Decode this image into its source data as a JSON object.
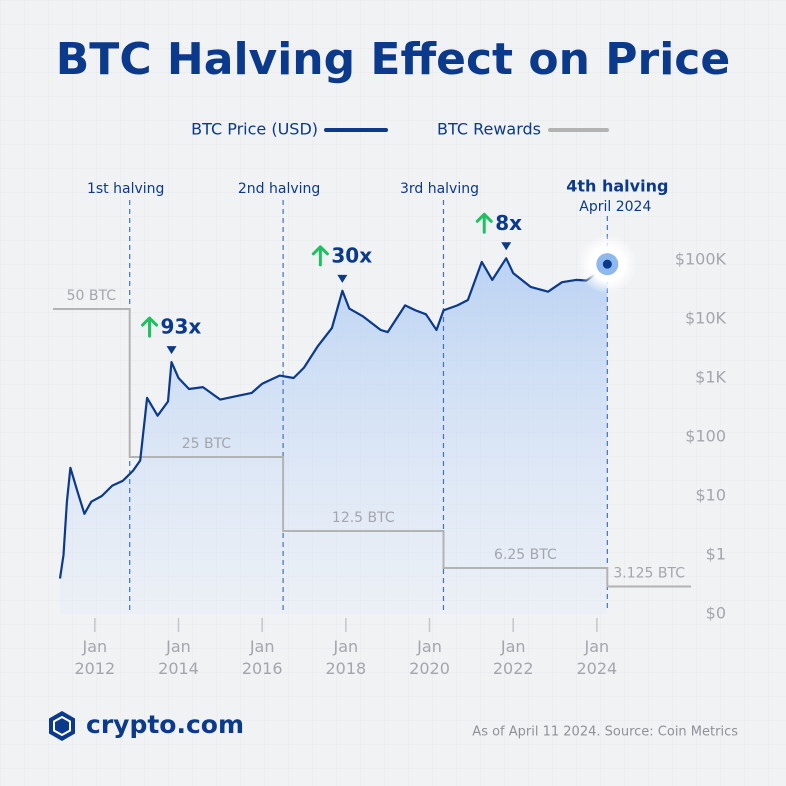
{
  "chart_data": {
    "type": "line",
    "title": "BTC Halving Effect on Price",
    "xlim": [
      "2011-01",
      "2026-04"
    ],
    "xticks": [
      {
        "value": "2012-01",
        "label": "Jan 2012"
      },
      {
        "value": "2014-01",
        "label": "Jan 2014"
      },
      {
        "value": "2016-01",
        "label": "Jan 2016"
      },
      {
        "value": "2018-01",
        "label": "Jan 2018"
      },
      {
        "value": "2020-01",
        "label": "Jan 2020"
      },
      {
        "value": "2022-01",
        "label": "Jan 2022"
      },
      {
        "value": "2024-01",
        "label": "Jan 2024"
      }
    ],
    "ylim": [
      0.1,
      1000000
    ],
    "log_scale": true,
    "yticks": [
      {
        "value": 0.1,
        "label": "$0"
      },
      {
        "value": 1,
        "label": "$1"
      },
      {
        "value": 10,
        "label": "$10"
      },
      {
        "value": 100,
        "label": "$100"
      },
      {
        "value": 1000,
        "label": "$1K"
      },
      {
        "value": 10000,
        "label": "$10K"
      },
      {
        "value": 100000,
        "label": "$100K"
      }
    ],
    "y2lim": [
      0,
      50
    ],
    "series": [
      {
        "name": "BTC Price (USD)",
        "color": "#0b3a8c",
        "x": [
          "2011-03",
          "2011-04",
          "2011-05",
          "2011-06",
          "2011-08",
          "2011-10",
          "2011-12",
          "2012-03",
          "2012-06",
          "2012-09",
          "2012-12",
          "2013-02",
          "2013-04",
          "2013-07",
          "2013-10",
          "2013-11",
          "2014-01",
          "2014-04",
          "2014-08",
          "2015-01",
          "2015-06",
          "2015-10",
          "2016-01",
          "2016-06",
          "2016-10",
          "2017-01",
          "2017-05",
          "2017-09",
          "2017-12",
          "2018-02",
          "2018-06",
          "2018-11",
          "2019-01",
          "2019-06",
          "2019-09",
          "2019-12",
          "2020-03",
          "2020-05",
          "2020-09",
          "2020-12",
          "2021-04",
          "2021-07",
          "2021-11",
          "2022-01",
          "2022-06",
          "2022-11",
          "2023-03",
          "2023-07",
          "2023-10",
          "2024-01",
          "2024-03",
          "2024-04"
        ],
        "values": [
          0.4,
          1,
          8,
          30,
          12,
          5,
          8,
          10,
          15,
          18,
          27,
          40,
          460,
          230,
          400,
          1860,
          1000,
          650,
          700,
          430,
          500,
          560,
          800,
          1100,
          1000,
          1500,
          3500,
          7000,
          30000,
          15000,
          11000,
          6500,
          6000,
          17000,
          14000,
          12000,
          6500,
          14000,
          17000,
          21000,
          93000,
          46000,
          107000,
          60000,
          35000,
          29000,
          42000,
          46000,
          45000,
          60000,
          75000,
          85000
        ]
      },
      {
        "name": "BTC Rewards",
        "color": "#b3b3b3",
        "axis": "y2",
        "x": [
          "2011-01",
          "2012-11",
          "2016-07",
          "2020-05",
          "2024-04"
        ],
        "values": [
          50,
          25,
          12.5,
          6.25,
          3.125
        ],
        "value_labels": [
          "50 BTC",
          "25 BTC",
          "12.5 BTC",
          "6.25 BTC",
          "3.125 BTC"
        ]
      }
    ],
    "halvings": [
      {
        "label": "1st halving",
        "x": "2012-11"
      },
      {
        "label": "2nd halving",
        "x": "2016-07"
      },
      {
        "label": "3rd halving",
        "x": "2020-05"
      },
      {
        "label": "4th halving",
        "x": "2024-04",
        "date": "April 2024"
      }
    ],
    "gains": [
      {
        "text": "93x",
        "x": "2013-11"
      },
      {
        "text": "30x",
        "x": "2017-12"
      },
      {
        "text": "8x",
        "x": "2021-11"
      }
    ],
    "brand": "crypto.com",
    "source": "As of April 11 2024. Source: Coin Metrics"
  }
}
